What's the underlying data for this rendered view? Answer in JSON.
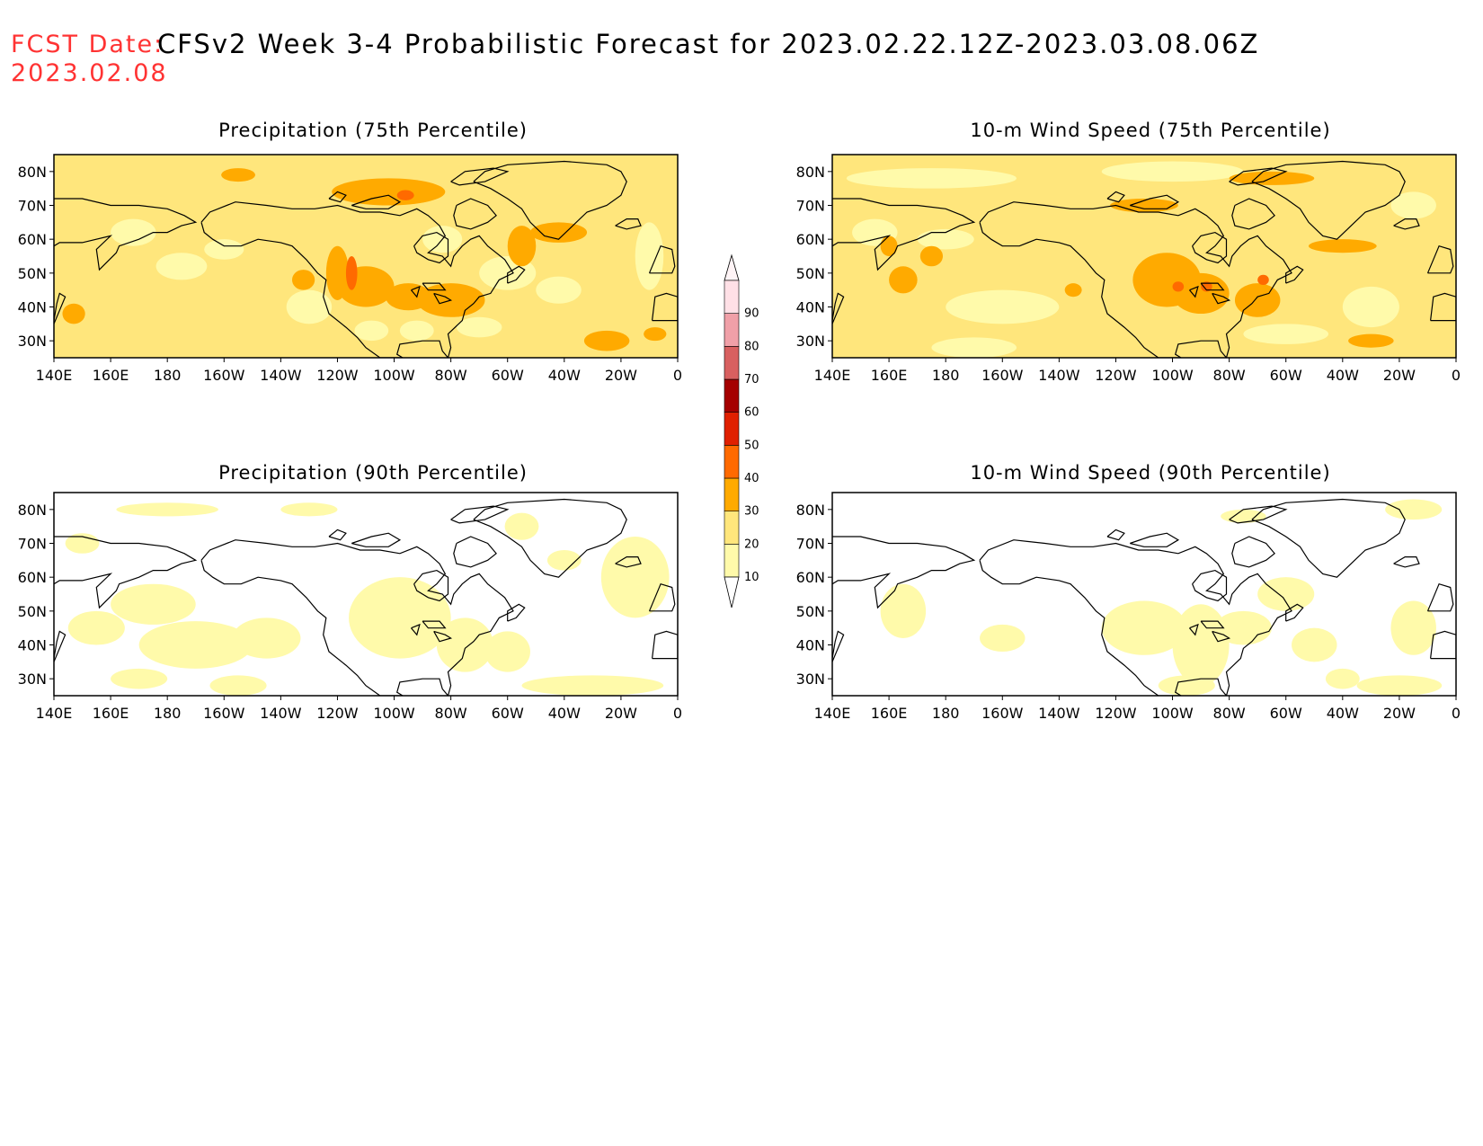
{
  "header": {
    "fcst_label": "FCST Date:",
    "fcst_date": "2023.02.08",
    "title": "CFSv2 Week 3-4 Probabilistic Forecast for 2023.02.22.12Z-2023.03.08.06Z"
  },
  "panels": [
    {
      "id": "precip-75",
      "title": "Precipitation (75th Percentile)"
    },
    {
      "id": "wind-75",
      "title": "10-m Wind Speed (75th Percentile)"
    },
    {
      "id": "precip-90",
      "title": "Precipitation (90th Percentile)"
    },
    {
      "id": "wind-90",
      "title": "10-m Wind Speed (90th Percentile)"
    }
  ],
  "axes": {
    "lon_ticks": [
      "140E",
      "160E",
      "180",
      "160W",
      "140W",
      "120W",
      "100W",
      "80W",
      "60W",
      "40W",
      "20W",
      "0"
    ],
    "lat_ticks": [
      "80N",
      "70N",
      "60N",
      "50N",
      "40N",
      "30N"
    ],
    "lon_range": [
      140,
      360
    ],
    "lat_range": [
      25,
      85
    ]
  },
  "colorbar": {
    "levels": [
      "10",
      "20",
      "30",
      "40",
      "50",
      "60",
      "70",
      "80",
      "90"
    ],
    "colors": [
      "#fffaaa",
      "#ffe67c",
      "#ffaa00",
      "#ff6a00",
      "#e02000",
      "#a50000",
      "#d86060",
      "#f0a0a8",
      "#ffe0e6"
    ]
  }
}
